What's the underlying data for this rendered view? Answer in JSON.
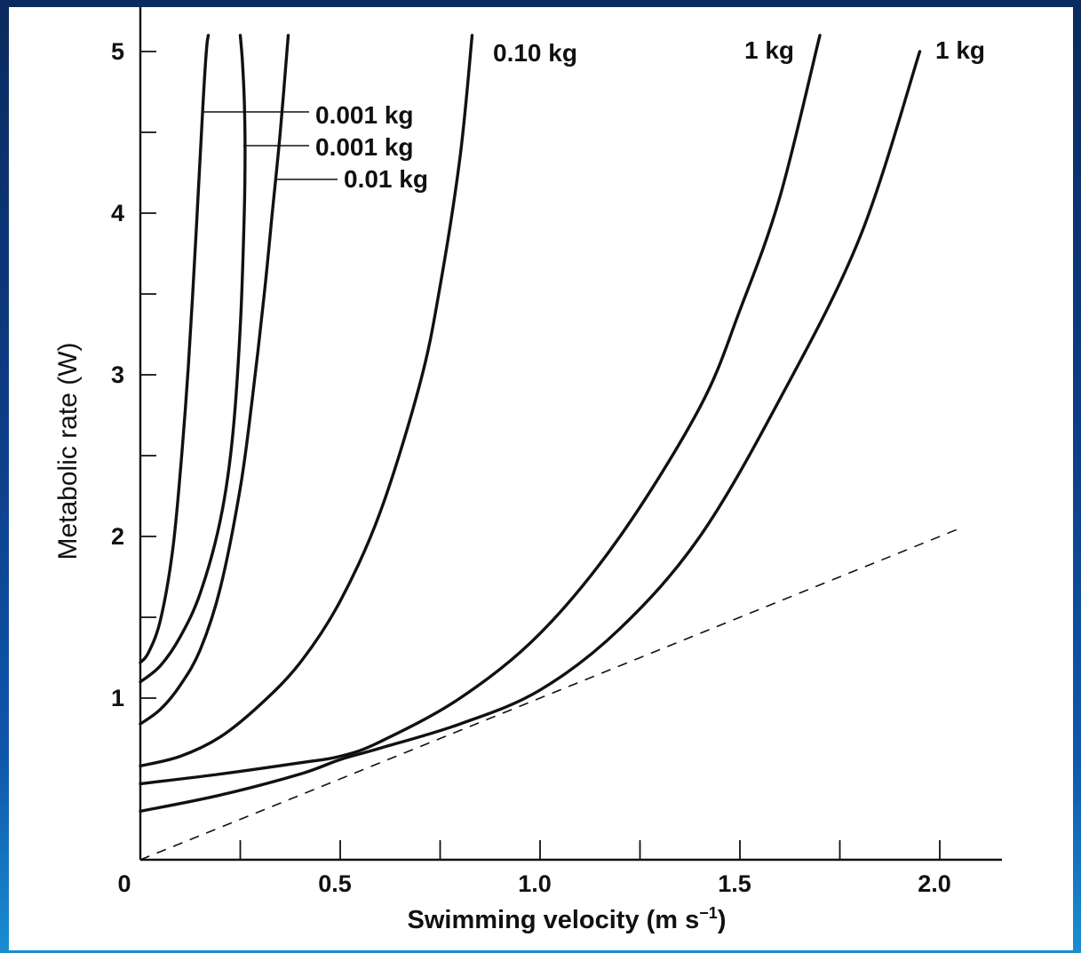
{
  "chart_data": {
    "type": "line",
    "xlabel": "Swimming velocity (m s",
    "xlabel_sup": "−1",
    "xlabel_end": ")",
    "ylabel": "Metabolic rate (W)",
    "xlim": [
      0,
      2.15
    ],
    "ylim": [
      0,
      5.1
    ],
    "x_ticks": [
      {
        "v": 0,
        "label": "0"
      },
      {
        "v": 0.5,
        "label": "0.5"
      },
      {
        "v": 1.0,
        "label": "1.0"
      },
      {
        "v": 1.5,
        "label": "1.5"
      },
      {
        "v": 2.0,
        "label": "2.0"
      }
    ],
    "x_minor_ticks": [
      0.25,
      0.75,
      1.25,
      1.75
    ],
    "y_ticks": [
      {
        "v": 1,
        "label": "1"
      },
      {
        "v": 2,
        "label": "2"
      },
      {
        "v": 3,
        "label": "3"
      },
      {
        "v": 4,
        "label": "4"
      },
      {
        "v": 5,
        "label": "5"
      }
    ],
    "y_minor_ticks": [
      1.5,
      2.5,
      3.5,
      4.5
    ],
    "grid": false,
    "series": [
      {
        "name": "0.001 kg",
        "style": "solid",
        "x": [
          0,
          0.02,
          0.05,
          0.08,
          0.1,
          0.12,
          0.14,
          0.155,
          0.165,
          0.17
        ],
        "y": [
          1.22,
          1.28,
          1.48,
          1.9,
          2.4,
          3.05,
          3.9,
          4.6,
          5.0,
          5.1
        ]
      },
      {
        "name": "0.001 kg",
        "style": "solid",
        "x": [
          0,
          0.05,
          0.1,
          0.15,
          0.2,
          0.23,
          0.25,
          0.26,
          0.262,
          0.26,
          0.255,
          0.25
        ],
        "y": [
          1.1,
          1.2,
          1.38,
          1.65,
          2.1,
          2.6,
          3.3,
          4.0,
          4.4,
          4.7,
          4.95,
          5.1
        ]
      },
      {
        "name": "0.01 kg",
        "style": "solid",
        "x": [
          0,
          0.05,
          0.1,
          0.15,
          0.2,
          0.25,
          0.28,
          0.31,
          0.33,
          0.35,
          0.37
        ],
        "y": [
          0.84,
          0.93,
          1.08,
          1.3,
          1.68,
          2.3,
          2.85,
          3.5,
          4.0,
          4.5,
          5.1
        ]
      },
      {
        "name": "0.10 kg",
        "style": "solid",
        "x": [
          0,
          0.1,
          0.2,
          0.3,
          0.4,
          0.5,
          0.6,
          0.7,
          0.75,
          0.8,
          0.83
        ],
        "y": [
          0.58,
          0.64,
          0.76,
          0.96,
          1.22,
          1.6,
          2.15,
          2.95,
          3.55,
          4.35,
          5.1
        ]
      },
      {
        "name": "1 kg",
        "style": "solid",
        "x": [
          0,
          0.2,
          0.4,
          0.5,
          0.6,
          0.8,
          1.0,
          1.2,
          1.4,
          1.5,
          1.6,
          1.7
        ],
        "y": [
          0.47,
          0.53,
          0.6,
          0.64,
          0.73,
          1.0,
          1.4,
          2.0,
          2.8,
          3.4,
          4.1,
          5.1
        ]
      },
      {
        "name": "1 kg",
        "style": "solid",
        "x": [
          0,
          0.2,
          0.4,
          0.5,
          0.6,
          0.8,
          1.0,
          1.2,
          1.4,
          1.6,
          1.8,
          1.95
        ],
        "y": [
          0.3,
          0.4,
          0.53,
          0.62,
          0.69,
          0.84,
          1.05,
          1.43,
          2.0,
          2.85,
          3.85,
          5.0
        ]
      },
      {
        "name": "",
        "style": "dashed",
        "x": [
          0,
          2.05
        ],
        "y": [
          0,
          2.05
        ]
      }
    ],
    "labels": [
      {
        "text": "0.10 kg"
      },
      {
        "text": "1 kg"
      },
      {
        "text": "1 kg"
      },
      {
        "text": "0.001 kg"
      },
      {
        "text": "0.001 kg"
      },
      {
        "text": "0.01 kg"
      }
    ]
  }
}
